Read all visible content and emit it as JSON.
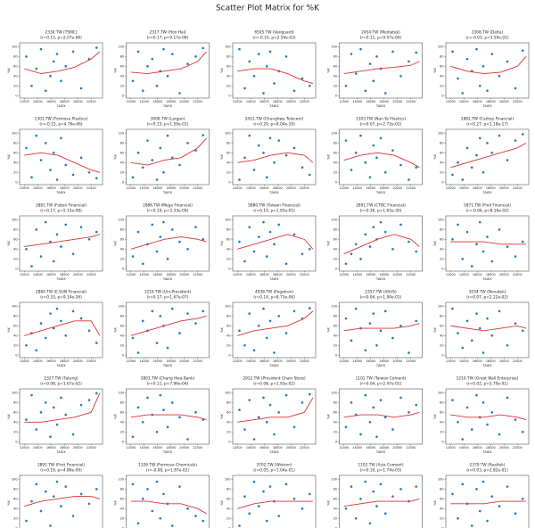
{
  "title": "Scatter Plot Matrix for %K",
  "chart_data": {
    "type": "scatter-matrix",
    "color": "#1f77b4",
    "trend_color": "#e03030",
    "xlabel": "TAIEX",
    "ylabel": "%K",
    "xlim": [
      11300,
      23700
    ],
    "ylim": [
      -5,
      108
    ],
    "xticks": [
      12000,
      14000,
      16000,
      18000,
      20000,
      22000
    ],
    "yticks": [
      0,
      20,
      40,
      60,
      80,
      100
    ],
    "x": [
      12300,
      13100,
      13800,
      14500,
      15200,
      15900,
      16400,
      16900,
      17500,
      18200,
      19300,
      20500,
      21700,
      22800
    ],
    "trend_x": [
      12000,
      14500,
      17000,
      19500,
      22000,
      23300
    ],
    "panels": [
      {
        "title": "2330.TW (TSMC)",
        "subtitle": "(r=0.15, p=2.07e-06)",
        "values": [
          80,
          20,
          55,
          95,
          10,
          40,
          70,
          85,
          30,
          60,
          90,
          15,
          75,
          98
        ],
        "trend": [
          55,
          45,
          50,
          58,
          75,
          90
        ]
      },
      {
        "title": "2317.TW (Hon Hai)",
        "subtitle": "(r=0.17, p=9.17e-08)",
        "values": [
          30,
          90,
          10,
          60,
          75,
          20,
          50,
          95,
          40,
          85,
          5,
          65,
          80,
          97
        ],
        "trend": [
          48,
          45,
          50,
          55,
          70,
          90
        ]
      },
      {
        "title": "6505.TW (Vanguard)",
        "subtitle": "(r=-0.10, p=2.59e-03)",
        "values": [
          95,
          15,
          70,
          40,
          85,
          5,
          60,
          90,
          25,
          50,
          80,
          10,
          35,
          20
        ],
        "trend": [
          50,
          55,
          55,
          45,
          30,
          25
        ]
      },
      {
        "title": "2454.TW (Mediatek)",
        "subtitle": "(r=0.11, p=9.07e-04)",
        "values": [
          20,
          85,
          45,
          95,
          10,
          65,
          30,
          80,
          55,
          5,
          90,
          40,
          70,
          88
        ],
        "trend": [
          45,
          50,
          55,
          58,
          62,
          70
        ]
      },
      {
        "title": "2308.TW (Delta)",
        "subtitle": "(r=-0.03, p=3.59e-01)",
        "values": [
          90,
          35,
          5,
          75,
          50,
          95,
          20,
          60,
          10,
          85,
          40,
          70,
          15,
          92
        ],
        "trend": [
          60,
          50,
          45,
          48,
          60,
          80
        ]
      },
      {
        "title": "1301.TW (Formosa Plastics)",
        "subtitle": "(r=-0.15, p=4.76e-06)",
        "values": [
          70,
          10,
          95,
          45,
          80,
          25,
          60,
          5,
          90,
          35,
          15,
          50,
          20,
          8
        ],
        "trend": [
          55,
          60,
          55,
          40,
          25,
          20
        ]
      },
      {
        "title": "3008.TW (Largan)",
        "subtitle": "(r=0.15, p=1.59e-01)",
        "values": [
          10,
          60,
          30,
          85,
          45,
          5,
          70,
          20,
          95,
          50,
          35,
          80,
          65,
          96
        ],
        "trend": [
          40,
          35,
          45,
          50,
          70,
          90
        ]
      },
      {
        "title": "2412.TW (Chunghwa Telecom)",
        "subtitle": "(r=0.20, p=8.04e-10)",
        "values": [
          5,
          50,
          95,
          25,
          75,
          60,
          10,
          90,
          40,
          85,
          55,
          70,
          30,
          15
        ],
        "trend": [
          40,
          45,
          55,
          60,
          55,
          40
        ]
      },
      {
        "title": "1303.TW (Nan Ya Plastics)",
        "subtitle": "(r=0.07, p=2.72e-02)",
        "values": [
          85,
          25,
          60,
          95,
          40,
          10,
          75,
          50,
          90,
          20,
          65,
          35,
          5,
          30
        ],
        "trend": [
          45,
          55,
          60,
          55,
          40,
          30
        ]
      },
      {
        "title": "2882.TW (Cathay Financial)",
        "subtitle": "(r=0.27, p=1.18e-17)",
        "values": [
          15,
          40,
          5,
          70,
          30,
          55,
          90,
          20,
          80,
          60,
          95,
          45,
          85,
          98
        ],
        "trend": [
          30,
          40,
          50,
          60,
          70,
          80
        ]
      },
      {
        "title": "2881.TW (Fubon Financial)",
        "subtitle": "(r=0.17, p=5.15e-08)",
        "values": [
          40,
          5,
          80,
          25,
          95,
          55,
          15,
          70,
          45,
          90,
          30,
          85,
          60,
          75
        ],
        "trend": [
          45,
          50,
          55,
          60,
          65,
          70
        ]
      },
      {
        "title": "2886.TW (Mega Financial)",
        "subtitle": "(r=0.19, p=3.33e-09)",
        "values": [
          25,
          75,
          10,
          50,
          90,
          35,
          65,
          95,
          20,
          80,
          55,
          40,
          85,
          60
        ],
        "trend": [
          40,
          50,
          60,
          65,
          60,
          55
        ]
      },
      {
        "title": "5880.TW (Taiwan Financial)",
        "subtitle": "(r=0.14, p=1.95e-05)",
        "values": [
          55,
          15,
          85,
          35,
          65,
          95,
          25,
          75,
          50,
          90,
          10,
          70,
          30,
          40
        ],
        "trend": [
          40,
          50,
          60,
          70,
          60,
          40
        ]
      },
      {
        "title": "2891.TW (CTBC Financial)",
        "subtitle": "(r=0.36, p=1.65e-30)",
        "values": [
          10,
          30,
          50,
          20,
          70,
          45,
          85,
          60,
          95,
          75,
          40,
          90,
          55,
          35
        ],
        "trend": [
          30,
          45,
          60,
          70,
          60,
          45
        ]
      },
      {
        "title": "5871.TW (Find Financial)",
        "subtitle": "(r=-0.06, p=8.16e-02)",
        "values": [
          60,
          90,
          20,
          75,
          5,
          50,
          95,
          35,
          65,
          15,
          80,
          45,
          25,
          55
        ],
        "trend": [
          55,
          55,
          55,
          50,
          50,
          50
        ]
      },
      {
        "title": "2884.TW (E.SUN Financial)",
        "subtitle": "(r=0.33, p=9.14e-26)",
        "values": [
          20,
          45,
          10,
          65,
          35,
          85,
          55,
          95,
          70,
          40,
          90,
          75,
          50,
          25
        ],
        "trend": [
          40,
          50,
          60,
          70,
          70,
          40
        ]
      },
      {
        "title": "1216.TW (Uni-President)",
        "subtitle": "(r=0.17, p=1.67e-07)",
        "values": [
          35,
          5,
          70,
          50,
          90,
          25,
          80,
          60,
          15,
          95,
          45,
          85,
          65,
          90
        ],
        "trend": [
          40,
          50,
          60,
          70,
          75,
          80
        ]
      },
      {
        "title": "4938.TW (Pegatron)",
        "subtitle": "(r=0.14, p=8.73e-06)",
        "values": [
          50,
          20,
          85,
          10,
          60,
          95,
          35,
          70,
          5,
          80,
          45,
          90,
          75,
          96
        ],
        "trend": [
          40,
          50,
          55,
          60,
          75,
          90
        ]
      },
      {
        "title": "2357.TW (ASUS)",
        "subtitle": "(r=0.04, p=1.90e-01)",
        "values": [
          75,
          30,
          95,
          55,
          10,
          65,
          85,
          20,
          50,
          90,
          35,
          60,
          5,
          70
        ],
        "trend": [
          50,
          55,
          55,
          55,
          60,
          65
        ]
      },
      {
        "title": "3034.TW (Novatek)",
        "subtitle": "(r=0.07, p=2.22e-02)",
        "values": [
          95,
          45,
          15,
          70,
          30,
          85,
          55,
          5,
          75,
          40,
          90,
          20,
          65,
          50
        ],
        "trend": [
          60,
          55,
          50,
          55,
          60,
          55
        ]
      },
      {
        "title": "2327.TW (Tatung)",
        "subtitle": "(r=0.08, p=1.67e-02)",
        "values": [
          45,
          95,
          25,
          60,
          80,
          10,
          70,
          35,
          90,
          55,
          15,
          75,
          85,
          99
        ],
        "trend": [
          40,
          40,
          45,
          50,
          60,
          100
        ]
      },
      {
        "title": "2801.TW (Chang Hwa Bank)",
        "subtitle": "(r=0.11, p=7.96e-04)",
        "values": [
          10,
          70,
          40,
          90,
          55,
          20,
          95,
          65,
          30,
          80,
          50,
          5,
          60,
          45
        ],
        "trend": [
          50,
          55,
          55,
          55,
          50,
          45
        ]
      },
      {
        "title": "2912.TW (President Chain Store)",
        "subtitle": "(r=0.08, p=1.93e-02)",
        "values": [
          65,
          25,
          85,
          5,
          50,
          90,
          40,
          75,
          15,
          60,
          95,
          30,
          80,
          97
        ],
        "trend": [
          40,
          45,
          50,
          50,
          60,
          90
        ]
      },
      {
        "title": "1101.TW (Taiwan Cement)",
        "subtitle": "(r=0.04, p=2.47e-01)",
        "values": [
          30,
          80,
          55,
          15,
          95,
          40,
          70,
          10,
          85,
          50,
          25,
          90,
          60,
          75
        ],
        "trend": [
          50,
          55,
          55,
          50,
          55,
          60
        ]
      },
      {
        "title": "1210.TW (Great Wall Enterprise)",
        "subtitle": "(r=0.02, p=5.70e-01)",
        "values": [
          85,
          40,
          5,
          70,
          25,
          95,
          50,
          80,
          35,
          60,
          15,
          90,
          45,
          20
        ],
        "trend": [
          55,
          50,
          50,
          55,
          50,
          45
        ]
      },
      {
        "title": "2892.TW (First Financial)",
        "subtitle": "(r=0.19, p=4.86e-09)",
        "values": [
          15,
          55,
          90,
          35,
          75,
          5,
          65,
          95,
          45,
          85,
          25,
          70,
          50,
          80
        ],
        "trend": [
          45,
          55,
          60,
          65,
          65,
          60
        ]
      },
      {
        "title": "1326.TW (Formosa Chemicals)",
        "subtitle": "(r=-0.08, p=1.87e-02)",
        "values": [
          90,
          10,
          60,
          80,
          35,
          95,
          20,
          70,
          50,
          5,
          85,
          40,
          25,
          15
        ],
        "trend": [
          55,
          55,
          50,
          50,
          40,
          30
        ]
      },
      {
        "title": "3702.TW (Wistron)",
        "subtitle": "(r=0.05, p=1.04e-01)",
        "values": [
          5,
          65,
          30,
          95,
          45,
          75,
          15,
          85,
          55,
          25,
          90,
          60,
          40,
          70
        ],
        "trend": [
          40,
          50,
          55,
          55,
          55,
          55
        ]
      },
      {
        "title": "1102.TW (Asia Cement)",
        "subtitle": "(r=0.10, p=1.74e-03)",
        "values": [
          40,
          85,
          20,
          60,
          95,
          10,
          75,
          45,
          90,
          30,
          65,
          80,
          55,
          85
        ],
        "trend": [
          45,
          50,
          55,
          55,
          55,
          60
        ]
      },
      {
        "title": "2379.TW (Realtek)",
        "subtitle": "(r=0.03, p=2.82e-01)",
        "values": [
          70,
          20,
          90,
          50,
          5,
          80,
          35,
          95,
          15,
          65,
          45,
          85,
          30,
          60
        ],
        "trend": [
          50,
          50,
          50,
          55,
          55,
          55
        ]
      }
    ]
  }
}
